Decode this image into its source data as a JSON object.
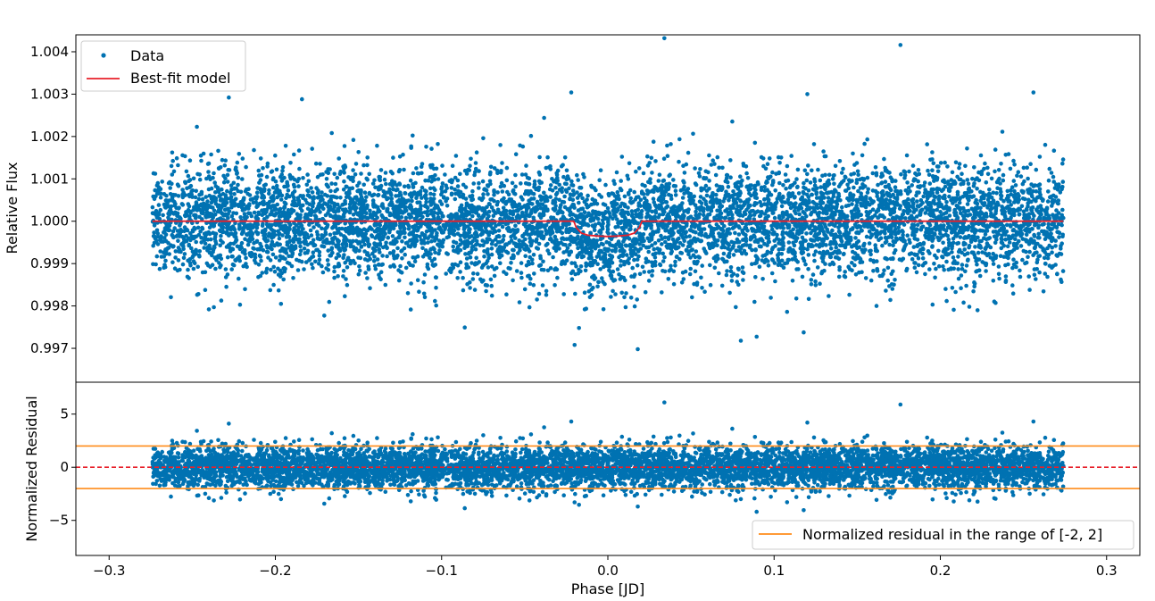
{
  "chart_data": [
    {
      "type": "scatter",
      "panel": "top",
      "title": "",
      "xlabel": "",
      "ylabel": "Relative Flux",
      "xlim": [
        -0.32,
        0.32
      ],
      "ylim": [
        0.9962,
        1.0044
      ],
      "yticks": [
        0.997,
        0.998,
        0.999,
        1.0,
        1.001,
        1.002,
        1.003,
        1.004
      ],
      "ytick_labels": [
        "0.997",
        "0.998",
        "0.999",
        "1.000",
        "1.001",
        "1.002",
        "1.003",
        "1.004"
      ],
      "legend": {
        "placement": "top-left",
        "entries": [
          "Data",
          "Best-fit model"
        ]
      },
      "colors": {
        "data": "#0072b2",
        "model": "#e8202a"
      },
      "series": [
        {
          "name": "Data",
          "kind": "points",
          "x_range": [
            -0.274,
            0.274
          ],
          "n_points": 7000,
          "baseline": 1.0,
          "scatter_sigma": 0.00065,
          "outliers": [
            {
              "x": 0.034,
              "y": 1.00432
            },
            {
              "x": 0.176,
              "y": 1.00416
            },
            {
              "x": -0.228,
              "y": 1.00292
            },
            {
              "x": 0.256,
              "y": 1.00304
            },
            {
              "x": -0.022,
              "y": 1.00304
            },
            {
              "x": 0.12,
              "y": 1.003
            },
            {
              "x": -0.184,
              "y": 1.00288
            },
            {
              "x": 0.018,
              "y": 0.99698
            },
            {
              "x": -0.02,
              "y": 0.99708
            },
            {
              "x": 0.08,
              "y": 0.99718
            },
            {
              "x": -0.24,
              "y": 0.99792
            },
            {
              "x": 0.214,
              "y": 0.99808
            }
          ]
        },
        {
          "name": "Best-fit model",
          "kind": "line",
          "x": [
            -0.274,
            -0.0205,
            -0.019,
            -0.016,
            -0.012,
            -0.006,
            0.0,
            0.006,
            0.012,
            0.016,
            0.019,
            0.0205,
            0.274
          ],
          "y": [
            1.0,
            1.0,
            0.99985,
            0.99972,
            0.99967,
            0.99965,
            0.99964,
            0.99965,
            0.99967,
            0.99972,
            0.99985,
            1.0,
            1.0
          ]
        }
      ]
    },
    {
      "type": "scatter",
      "panel": "bottom",
      "title": "",
      "xlabel": "Phase [JD]",
      "ylabel": "Normalized Residual",
      "xlim": [
        -0.32,
        0.32
      ],
      "ylim": [
        -8.3,
        8.0
      ],
      "xticks": [
        -0.3,
        -0.2,
        -0.1,
        0.0,
        0.1,
        0.2,
        0.3
      ],
      "xtick_labels": [
        "−0.3",
        "−0.2",
        "−0.1",
        "0.0",
        "0.1",
        "0.2",
        "0.3"
      ],
      "yticks": [
        -5,
        0,
        5
      ],
      "ytick_labels": [
        "−5",
        "0",
        "5"
      ],
      "legend": {
        "placement": "bottom-right",
        "entries": [
          "Normalized residual in the range of [-2, 2]"
        ]
      },
      "colors": {
        "data": "#0072b2",
        "range_lines": "#ff8c1a",
        "zero_line": "#e8202a"
      },
      "reference_lines": [
        {
          "y": 2,
          "style": "solid",
          "label": "Normalized residual in the range of [-2, 2]"
        },
        {
          "y": -2,
          "style": "solid"
        },
        {
          "y": 0,
          "style": "dashed"
        }
      ],
      "series": [
        {
          "name": "Data",
          "kind": "points",
          "x_range": [
            -0.274,
            0.274
          ],
          "n_points": 7000,
          "baseline": 0,
          "scatter_sigma": 1.0,
          "outliers": [
            {
              "x": 0.034,
              "y": 6.1
            },
            {
              "x": 0.176,
              "y": 5.9
            },
            {
              "x": -0.228,
              "y": 4.1
            },
            {
              "x": 0.256,
              "y": 4.3
            },
            {
              "x": -0.022,
              "y": 4.3
            },
            {
              "x": 0.12,
              "y": 4.2
            },
            {
              "x": 0.018,
              "y": -3.7
            },
            {
              "x": -0.02,
              "y": -3.3
            },
            {
              "x": 0.08,
              "y": -3.0
            },
            {
              "x": -0.24,
              "y": -2.9
            }
          ]
        }
      ]
    }
  ]
}
